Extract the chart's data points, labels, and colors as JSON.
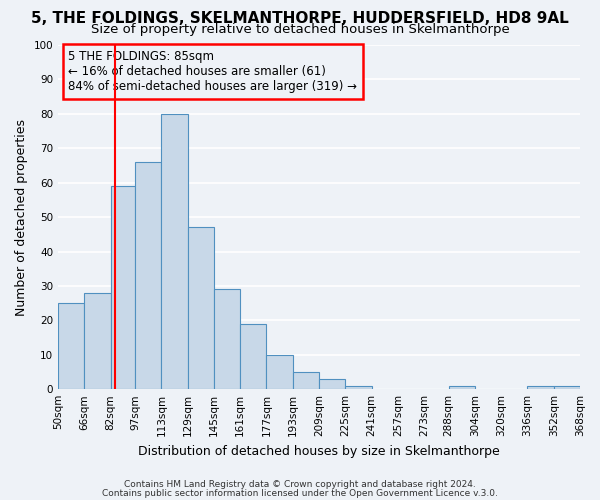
{
  "title": "5, THE FOLDINGS, SKELMANTHORPE, HUDDERSFIELD, HD8 9AL",
  "subtitle": "Size of property relative to detached houses in Skelmanthorpe",
  "xlabel": "Distribution of detached houses by size in Skelmanthorpe",
  "ylabel": "Number of detached properties",
  "bin_edges": [
    50,
    66,
    82,
    97,
    113,
    129,
    145,
    161,
    177,
    193,
    209,
    225,
    241,
    257,
    273,
    288,
    304,
    320,
    336,
    352,
    368
  ],
  "bar_heights": [
    25,
    28,
    59,
    66,
    80,
    47,
    29,
    19,
    10,
    5,
    3,
    1,
    0,
    0,
    0,
    1,
    0,
    0,
    1,
    1
  ],
  "bar_color": "#c8d8e8",
  "bar_edge_color": "#5090c0",
  "vline_x": 85,
  "vline_color": "red",
  "ylim": [
    0,
    100
  ],
  "yticks": [
    0,
    10,
    20,
    30,
    40,
    50,
    60,
    70,
    80,
    90,
    100
  ],
  "annotation_title": "5 THE FOLDINGS: 85sqm",
  "annotation_line1": "← 16% of detached houses are smaller (61)",
  "annotation_line2": "84% of semi-detached houses are larger (319) →",
  "annotation_box_color": "red",
  "footnote1": "Contains HM Land Registry data © Crown copyright and database right 2024.",
  "footnote2": "Contains public sector information licensed under the Open Government Licence v.3.0.",
  "tick_labels": [
    "50sqm",
    "66sqm",
    "82sqm",
    "97sqm",
    "113sqm",
    "129sqm",
    "145sqm",
    "161sqm",
    "177sqm",
    "193sqm",
    "209sqm",
    "225sqm",
    "241sqm",
    "257sqm",
    "273sqm",
    "288sqm",
    "304sqm",
    "320sqm",
    "336sqm",
    "352sqm",
    "368sqm"
  ],
  "bg_color": "#eef2f7",
  "grid_color": "white",
  "title_fontsize": 11,
  "subtitle_fontsize": 9.5,
  "axis_label_fontsize": 9,
  "tick_fontsize": 7.5,
  "annot_fontsize": 8.5
}
